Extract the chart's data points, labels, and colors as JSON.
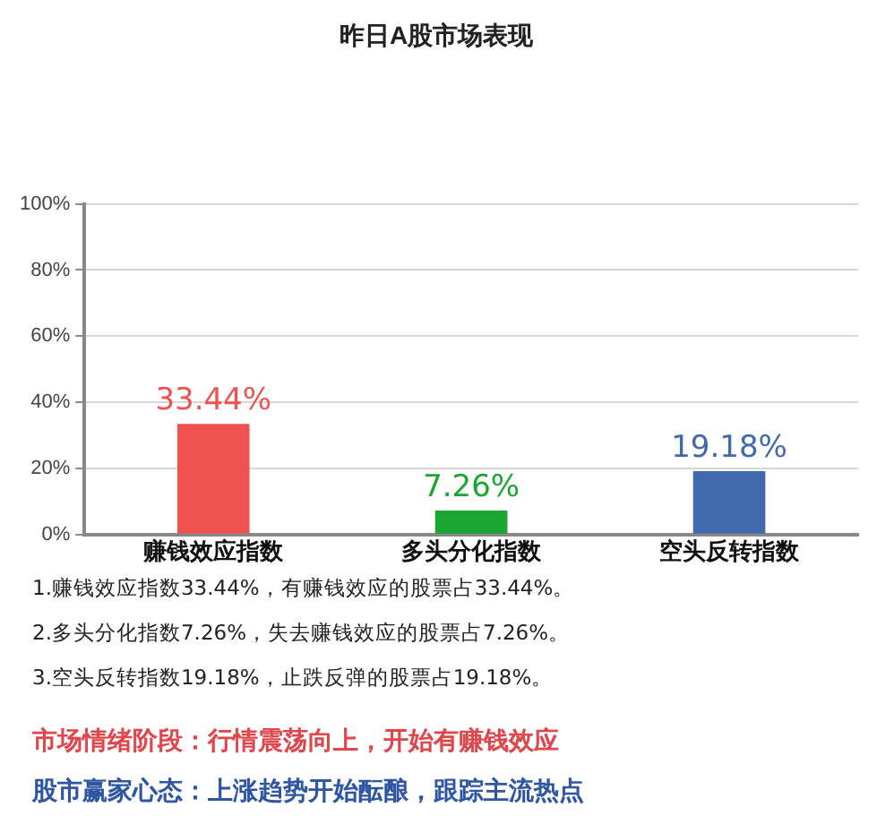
{
  "chart_data": {
    "type": "bar",
    "title": "昨日A股市场表现",
    "categories": [
      "赚钱效应指数",
      "多头分化指数",
      "空头反转指数"
    ],
    "values": [
      33.44,
      7.26,
      19.18
    ],
    "colors": [
      "#ef5350",
      "#1aa632",
      "#4169ab"
    ],
    "value_labels": [
      "33.44%",
      "7.26%",
      "19.18%"
    ],
    "ylim": [
      0,
      100
    ],
    "yticks": [
      {
        "value": 0,
        "label": "0%"
      },
      {
        "value": 20,
        "label": "20%"
      },
      {
        "value": 40,
        "label": "40%"
      },
      {
        "value": 60,
        "label": "60%"
      },
      {
        "value": 80,
        "label": "80%"
      },
      {
        "value": 100,
        "label": "100%"
      }
    ],
    "grid": "y",
    "legend": false,
    "annotations": [
      "1.赚钱效应指数33.44%，有赚钱效应的股票占33.44%。",
      "2.多头分化指数7.26%，失去赚钱效应的股票占7.26%。",
      "3.空头反转指数19.18%，止跌反弹的股票占19.18%。",
      "市场情绪阶段：行情震荡向上，开始有赚钱效应",
      "股市赢家心态：上涨趋势开始酝酿，跟踪主流热点"
    ]
  }
}
